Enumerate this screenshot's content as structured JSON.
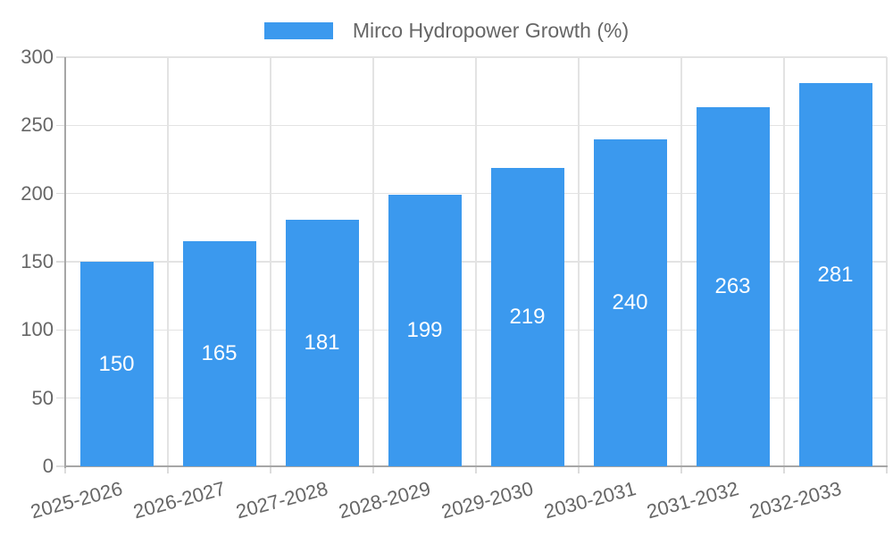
{
  "chart_data": {
    "type": "bar",
    "legend": "Mirco Hydropower Growth (%)",
    "legend_position": "top-center",
    "categories": [
      "2025-2026",
      "2026-2027",
      "2027-2028",
      "2028-2029",
      "2029-2030",
      "2030-2031",
      "2031-2032",
      "2032-2033"
    ],
    "values": [
      150,
      165,
      181,
      199,
      219,
      240,
      263,
      281
    ],
    "yticks": [
      0,
      50,
      100,
      150,
      200,
      250,
      300
    ],
    "ylim": [
      0,
      300
    ],
    "xlabel": "",
    "ylabel": "",
    "grid": true,
    "x_label_rotation_deg": -15,
    "colors": {
      "bar": "#3b99ee",
      "value_label": "#ffffff",
      "text": "#666666",
      "grid": "#e3e3e3",
      "axis": "#a6a6a6"
    }
  }
}
